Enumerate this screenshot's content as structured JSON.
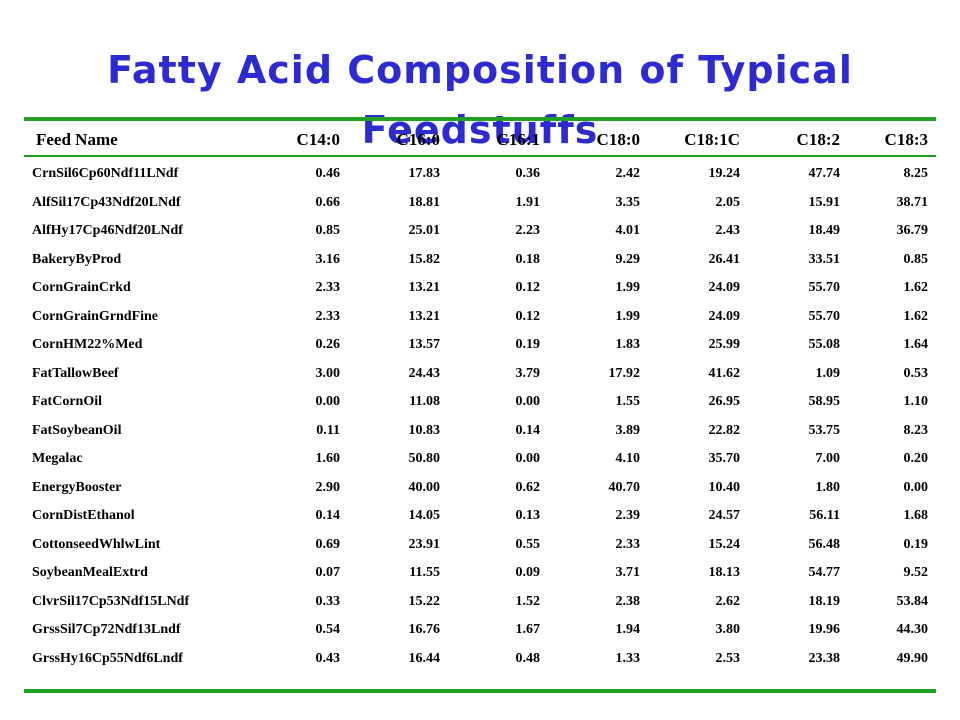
{
  "title": "Fatty Acid Composition of Typical Feedstuffs",
  "colors": {
    "title": "#2b2bd0",
    "rule": "#22a022"
  },
  "table": {
    "headers": [
      "Feed Name",
      "C14:0",
      "C16:0",
      "C16:1",
      "C18:0",
      "C18:1C",
      "C18:2",
      "C18:3"
    ],
    "rows": [
      [
        "CrnSil6Cp60Ndf11LNdf",
        "0.46",
        "17.83",
        "0.36",
        "2.42",
        "19.24",
        "47.74",
        "8.25"
      ],
      [
        "AlfSil17Cp43Ndf20LNdf",
        "0.66",
        "18.81",
        "1.91",
        "3.35",
        "2.05",
        "15.91",
        "38.71"
      ],
      [
        "AlfHy17Cp46Ndf20LNdf",
        "0.85",
        "25.01",
        "2.23",
        "4.01",
        "2.43",
        "18.49",
        "36.79"
      ],
      [
        "BakeryByProd",
        "3.16",
        "15.82",
        "0.18",
        "9.29",
        "26.41",
        "33.51",
        "0.85"
      ],
      [
        "CornGrainCrkd",
        "2.33",
        "13.21",
        "0.12",
        "1.99",
        "24.09",
        "55.70",
        "1.62"
      ],
      [
        "CornGrainGrndFine",
        "2.33",
        "13.21",
        "0.12",
        "1.99",
        "24.09",
        "55.70",
        "1.62"
      ],
      [
        "CornHM22%Med",
        "0.26",
        "13.57",
        "0.19",
        "1.83",
        "25.99",
        "55.08",
        "1.64"
      ],
      [
        "FatTallowBeef",
        "3.00",
        "24.43",
        "3.79",
        "17.92",
        "41.62",
        "1.09",
        "0.53"
      ],
      [
        "FatCornOil",
        "0.00",
        "11.08",
        "0.00",
        "1.55",
        "26.95",
        "58.95",
        "1.10"
      ],
      [
        "FatSoybeanOil",
        "0.11",
        "10.83",
        "0.14",
        "3.89",
        "22.82",
        "53.75",
        "8.23"
      ],
      [
        "Megalac",
        "1.60",
        "50.80",
        "0.00",
        "4.10",
        "35.70",
        "7.00",
        "0.20"
      ],
      [
        "EnergyBooster",
        "2.90",
        "40.00",
        "0.62",
        "40.70",
        "10.40",
        "1.80",
        "0.00"
      ],
      [
        "CornDistEthanol",
        "0.14",
        "14.05",
        "0.13",
        "2.39",
        "24.57",
        "56.11",
        "1.68"
      ],
      [
        "CottonseedWhlwLint",
        "0.69",
        "23.91",
        "0.55",
        "2.33",
        "15.24",
        "56.48",
        "0.19"
      ],
      [
        "SoybeanMealExtrd",
        "0.07",
        "11.55",
        "0.09",
        "3.71",
        "18.13",
        "54.77",
        "9.52"
      ],
      [
        "ClvrSil17Cp53Ndf15LNdf",
        "0.33",
        "15.22",
        "1.52",
        "2.38",
        "2.62",
        "18.19",
        "53.84"
      ],
      [
        "GrssSil7Cp72Ndf13Lndf",
        "0.54",
        "16.76",
        "1.67",
        "1.94",
        "3.80",
        "19.96",
        "44.30"
      ],
      [
        "GrssHy16Cp55Ndf6Lndf",
        "0.43",
        "16.44",
        "0.48",
        "1.33",
        "2.53",
        "23.38",
        "49.90"
      ]
    ]
  }
}
